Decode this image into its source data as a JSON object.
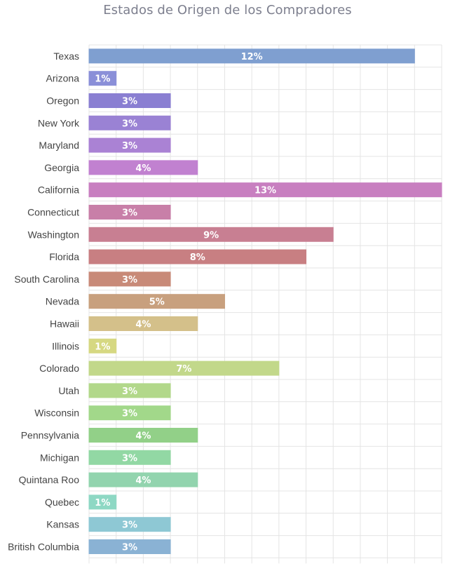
{
  "title": "Estados de Origen de los Compradores",
  "chart_data": {
    "type": "bar",
    "orientation": "horizontal",
    "title": "Estados de Origen de los Compradores",
    "xlabel": "",
    "ylabel": "",
    "xlim": [
      0,
      13
    ],
    "grid": true,
    "categories": [
      "Texas",
      "Arizona",
      "Oregon",
      "New York",
      "Maryland",
      "Georgia",
      "California",
      "Connecticut",
      "Washington",
      "Florida",
      "South Carolina",
      "Nevada",
      "Hawaii",
      "Illinois",
      "Colorado",
      "Utah",
      "Wisconsin",
      "Pennsylvania",
      "Michigan",
      "Quintana Roo",
      "Quebec",
      "Kansas",
      "British Columbia"
    ],
    "values": [
      12,
      1,
      3,
      3,
      3,
      4,
      13,
      3,
      9,
      8,
      3,
      5,
      4,
      1,
      7,
      3,
      3,
      4,
      3,
      4,
      1,
      3,
      3
    ],
    "labels": [
      "12%",
      "1%",
      "3%",
      "3%",
      "3%",
      "4%",
      "13%",
      "3%",
      "9%",
      "8%",
      "3%",
      "5%",
      "4%",
      "1%",
      "7%",
      "3%",
      "3%",
      "4%",
      "3%",
      "4%",
      "1%",
      "3%",
      "3%"
    ],
    "colors": [
      "#7f9fd0",
      "#8a8fd8",
      "#8a7fd2",
      "#9a82d4",
      "#aa82d4",
      "#c181d0",
      "#c87fc0",
      "#c87fa8",
      "#c87f92",
      "#c87f82",
      "#c88a78",
      "#c8a07e",
      "#d4c08a",
      "#d6d882",
      "#c2d88a",
      "#b2d88a",
      "#a2d88a",
      "#92d088",
      "#92d8a4",
      "#92d4ae",
      "#8ed8c4",
      "#8ec8d4",
      "#8ab2d4"
    ]
  }
}
